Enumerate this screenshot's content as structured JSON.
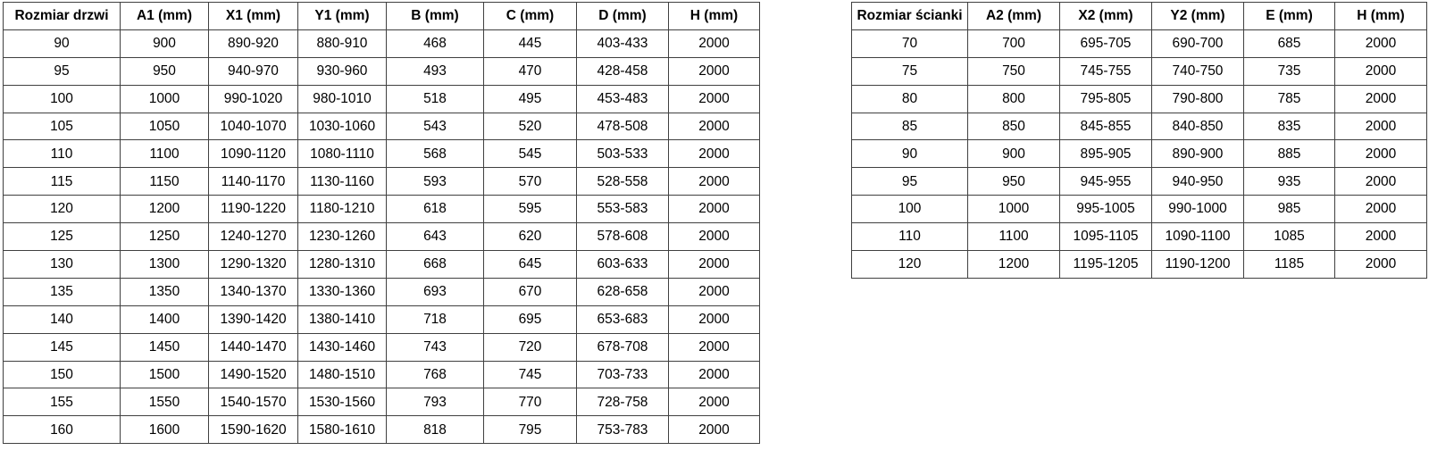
{
  "page": {
    "background_color": "#ffffff",
    "text_color": "#000000",
    "border_color": "#404040"
  },
  "door_table": {
    "headers": [
      "Rozmiar drzwi",
      "A1 (mm)",
      "X1 (mm)",
      "Y1 (mm)",
      "B (mm)",
      "C (mm)",
      "D (mm)",
      "H (mm)"
    ],
    "rows": [
      [
        "90",
        "900",
        "890-920",
        "880-910",
        "468",
        "445",
        "403-433",
        "2000"
      ],
      [
        "95",
        "950",
        "940-970",
        "930-960",
        "493",
        "470",
        "428-458",
        "2000"
      ],
      [
        "100",
        "1000",
        "990-1020",
        "980-1010",
        "518",
        "495",
        "453-483",
        "2000"
      ],
      [
        "105",
        "1050",
        "1040-1070",
        "1030-1060",
        "543",
        "520",
        "478-508",
        "2000"
      ],
      [
        "110",
        "1100",
        "1090-1120",
        "1080-1110",
        "568",
        "545",
        "503-533",
        "2000"
      ],
      [
        "115",
        "1150",
        "1140-1170",
        "1130-1160",
        "593",
        "570",
        "528-558",
        "2000"
      ],
      [
        "120",
        "1200",
        "1190-1220",
        "1180-1210",
        "618",
        "595",
        "553-583",
        "2000"
      ],
      [
        "125",
        "1250",
        "1240-1270",
        "1230-1260",
        "643",
        "620",
        "578-608",
        "2000"
      ],
      [
        "130",
        "1300",
        "1290-1320",
        "1280-1310",
        "668",
        "645",
        "603-633",
        "2000"
      ],
      [
        "135",
        "1350",
        "1340-1370",
        "1330-1360",
        "693",
        "670",
        "628-658",
        "2000"
      ],
      [
        "140",
        "1400",
        "1390-1420",
        "1380-1410",
        "718",
        "695",
        "653-683",
        "2000"
      ],
      [
        "145",
        "1450",
        "1440-1470",
        "1430-1460",
        "743",
        "720",
        "678-708",
        "2000"
      ],
      [
        "150",
        "1500",
        "1490-1520",
        "1480-1510",
        "768",
        "745",
        "703-733",
        "2000"
      ],
      [
        "155",
        "1550",
        "1540-1570",
        "1530-1560",
        "793",
        "770",
        "728-758",
        "2000"
      ],
      [
        "160",
        "1600",
        "1590-1620",
        "1580-1610",
        "818",
        "795",
        "753-783",
        "2000"
      ]
    ]
  },
  "wall_table": {
    "headers": [
      "Rozmiar ścianki",
      "A2 (mm)",
      "X2 (mm)",
      "Y2 (mm)",
      "E (mm)",
      "H (mm)"
    ],
    "rows": [
      [
        "70",
        "700",
        "695-705",
        "690-700",
        "685",
        "2000"
      ],
      [
        "75",
        "750",
        "745-755",
        "740-750",
        "735",
        "2000"
      ],
      [
        "80",
        "800",
        "795-805",
        "790-800",
        "785",
        "2000"
      ],
      [
        "85",
        "850",
        "845-855",
        "840-850",
        "835",
        "2000"
      ],
      [
        "90",
        "900",
        "895-905",
        "890-900",
        "885",
        "2000"
      ],
      [
        "95",
        "950",
        "945-955",
        "940-950",
        "935",
        "2000"
      ],
      [
        "100",
        "1000",
        "995-1005",
        "990-1000",
        "985",
        "2000"
      ],
      [
        "110",
        "1100",
        "1095-1105",
        "1090-1100",
        "1085",
        "2000"
      ],
      [
        "120",
        "1200",
        "1195-1205",
        "1190-1200",
        "1185",
        "2000"
      ]
    ]
  }
}
